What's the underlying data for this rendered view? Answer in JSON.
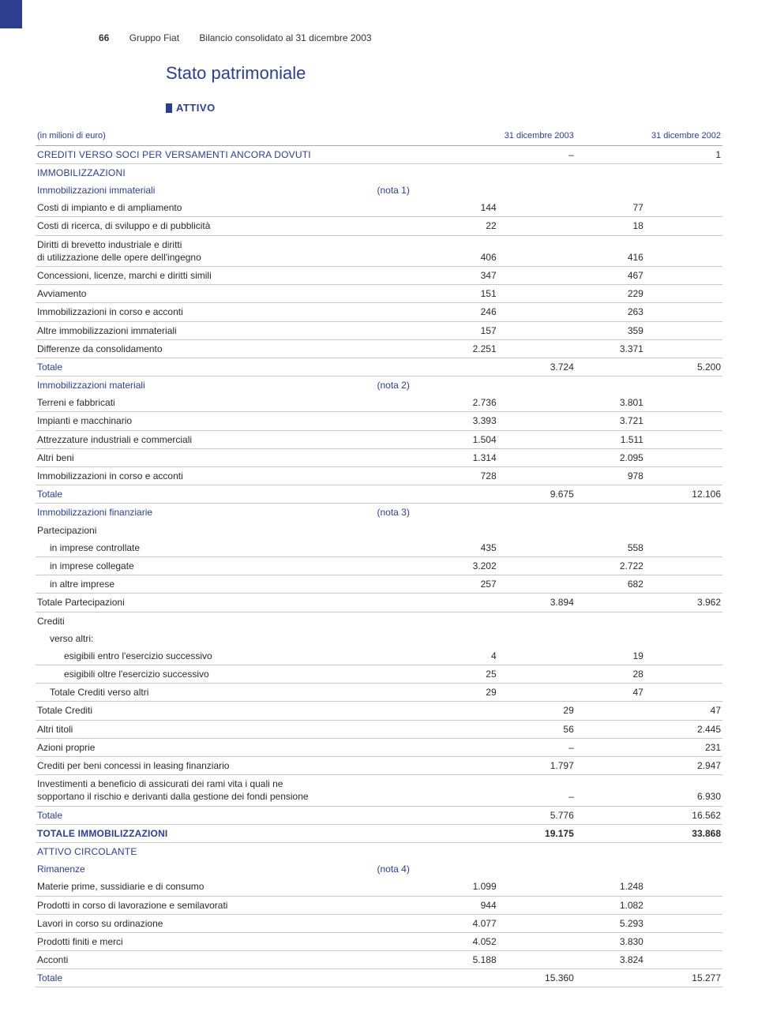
{
  "header": {
    "page_number": "66",
    "group": "Gruppo Fiat",
    "doc_title": "Bilancio consolidato al 31 dicembre 2003"
  },
  "title": "Stato patrimoniale",
  "subtitle": "ATTIVO",
  "table": {
    "unit_label": "(in milioni di euro)",
    "col_2003": "31 dicembre 2003",
    "col_2002": "31 dicembre 2002",
    "colors": {
      "accent": "#2d3e8f",
      "rule": "#c6c6c6",
      "text": "#2a2a2a",
      "background": "#ffffff"
    },
    "rows": [
      {
        "label": "CREDITI VERSO SOCI PER VERSAMENTI ANCORA DOVUTI",
        "c1": "",
        "c2": "–",
        "c3": "",
        "c4": "1",
        "class": "section-blue caps"
      },
      {
        "label": "IMMOBILIZZAZIONI",
        "class": "section-blue caps noborder",
        "c1": "",
        "c2": "",
        "c3": "",
        "c4": ""
      },
      {
        "label": "Immobilizzazioni immateriali",
        "note": "(nota 1)",
        "class": "section-blue noborder",
        "c1": "",
        "c2": "",
        "c3": "",
        "c4": ""
      },
      {
        "label": "Costi di impianto e di ampliamento",
        "c1": "144",
        "c2": "",
        "c3": "77",
        "c4": ""
      },
      {
        "label": "Costi di ricerca, di sviluppo e di pubblicità",
        "c1": "22",
        "c2": "",
        "c3": "18",
        "c4": ""
      },
      {
        "label": "Diritti di brevetto industriale e diritti<br>di utilizzazione delle opere dell'ingegno",
        "c1": "406",
        "c2": "",
        "c3": "416",
        "c4": ""
      },
      {
        "label": "Concessioni, licenze, marchi e diritti simili",
        "c1": "347",
        "c2": "",
        "c3": "467",
        "c4": ""
      },
      {
        "label": "Avviamento",
        "c1": "151",
        "c2": "",
        "c3": "229",
        "c4": ""
      },
      {
        "label": "Immobilizzazioni in corso e acconti",
        "c1": "246",
        "c2": "",
        "c3": "263",
        "c4": ""
      },
      {
        "label": "Altre immobilizzazioni immateriali",
        "c1": "157",
        "c2": "",
        "c3": "359",
        "c4": ""
      },
      {
        "label": "Differenze da consolidamento",
        "c1": "2.251",
        "c2": "",
        "c3": "3.371",
        "c4": ""
      },
      {
        "label": "Totale",
        "c1": "",
        "c2": "3.724",
        "c3": "",
        "c4": "5.200",
        "class": "section-blue"
      },
      {
        "label": "Immobilizzazioni materiali",
        "note": "(nota 2)",
        "class": "section-blue noborder",
        "c1": "",
        "c2": "",
        "c3": "",
        "c4": ""
      },
      {
        "label": "Terreni e fabbricati",
        "c1": "2.736",
        "c2": "",
        "c3": "3.801",
        "c4": ""
      },
      {
        "label": "Impianti e macchinario",
        "c1": "3.393",
        "c2": "",
        "c3": "3.721",
        "c4": ""
      },
      {
        "label": "Attrezzature industriali e commerciali",
        "c1": "1.504",
        "c2": "",
        "c3": "1.511",
        "c4": ""
      },
      {
        "label": "Altri beni",
        "c1": "1.314",
        "c2": "",
        "c3": "2.095",
        "c4": ""
      },
      {
        "label": "Immobilizzazioni in corso e acconti",
        "c1": "728",
        "c2": "",
        "c3": "978",
        "c4": ""
      },
      {
        "label": "Totale",
        "c1": "",
        "c2": "9.675",
        "c3": "",
        "c4": "12.106",
        "class": "section-blue"
      },
      {
        "label": "Immobilizzazioni finanziarie",
        "note": "(nota 3)",
        "class": "section-blue noborder",
        "c1": "",
        "c2": "",
        "c3": "",
        "c4": ""
      },
      {
        "label": "Partecipazioni",
        "class": "noborder",
        "c1": "",
        "c2": "",
        "c3": "",
        "c4": ""
      },
      {
        "label": "in imprese controllate",
        "indent": 1,
        "c1": "435",
        "c2": "",
        "c3": "558",
        "c4": ""
      },
      {
        "label": "in imprese collegate",
        "indent": 1,
        "c1": "3.202",
        "c2": "",
        "c3": "2.722",
        "c4": ""
      },
      {
        "label": "in altre imprese",
        "indent": 1,
        "c1": "257",
        "c2": "",
        "c3": "682",
        "c4": ""
      },
      {
        "label": "Totale Partecipazioni",
        "c1": "",
        "c2": "3.894",
        "c3": "",
        "c4": "3.962"
      },
      {
        "label": "Crediti",
        "class": "noborder",
        "c1": "",
        "c2": "",
        "c3": "",
        "c4": ""
      },
      {
        "label": "verso altri:",
        "indent": 1,
        "class": "noborder",
        "c1": "",
        "c2": "",
        "c3": "",
        "c4": ""
      },
      {
        "label": "esigibili entro l'esercizio successivo",
        "indent": 2,
        "c1": "4",
        "c2": "",
        "c3": "19",
        "c4": ""
      },
      {
        "label": "esigibili oltre l'esercizio successivo",
        "indent": 2,
        "c1": "25",
        "c2": "",
        "c3": "28",
        "c4": ""
      },
      {
        "label": "Totale Crediti verso altri",
        "indent": 1,
        "c1": "29",
        "c2": "",
        "c3": "47",
        "c4": ""
      },
      {
        "label": "Totale Crediti",
        "c1": "",
        "c2": "29",
        "c3": "",
        "c4": "47"
      },
      {
        "label": "Altri titoli",
        "c1": "",
        "c2": "56",
        "c3": "",
        "c4": "2.445"
      },
      {
        "label": "Azioni proprie",
        "c1": "",
        "c2": "–",
        "c3": "",
        "c4": "231"
      },
      {
        "label": "Crediti per beni concessi in leasing finanziario",
        "c1": "",
        "c2": "1.797",
        "c3": "",
        "c4": "2.947"
      },
      {
        "label": "Investimenti a beneficio di assicurati dei rami vita i quali ne<br>sopportano il rischio e derivanti dalla gestione dei fondi pensione",
        "c1": "",
        "c2": "–",
        "c3": "",
        "c4": "6.930"
      },
      {
        "label": "Totale",
        "c1": "",
        "c2": "5.776",
        "c3": "",
        "c4": "16.562",
        "class": "section-blue"
      },
      {
        "label": "TOTALE IMMOBILIZZAZIONI",
        "c1": "",
        "c2": "19.175",
        "c3": "",
        "c4": "33.868",
        "class": "grand caps"
      },
      {
        "label": "ATTIVO CIRCOLANTE",
        "class": "section-blue caps noborder",
        "c1": "",
        "c2": "",
        "c3": "",
        "c4": ""
      },
      {
        "label": "Rimanenze",
        "note": "(nota 4)",
        "class": "section-blue noborder",
        "c1": "",
        "c2": "",
        "c3": "",
        "c4": ""
      },
      {
        "label": "Materie prime, sussidiarie e di consumo",
        "c1": "1.099",
        "c2": "",
        "c3": "1.248",
        "c4": ""
      },
      {
        "label": "Prodotti in corso di lavorazione e semilavorati",
        "c1": "944",
        "c2": "",
        "c3": "1.082",
        "c4": ""
      },
      {
        "label": "Lavori in corso su ordinazione",
        "c1": "4.077",
        "c2": "",
        "c3": "5.293",
        "c4": ""
      },
      {
        "label": "Prodotti finiti e merci",
        "c1": "4.052",
        "c2": "",
        "c3": "3.830",
        "c4": ""
      },
      {
        "label": "Acconti",
        "c1": "5.188",
        "c2": "",
        "c3": "3.824",
        "c4": ""
      },
      {
        "label": "Totale",
        "c1": "",
        "c2": "15.360",
        "c3": "",
        "c4": "15.277",
        "class": "section-blue"
      }
    ]
  }
}
